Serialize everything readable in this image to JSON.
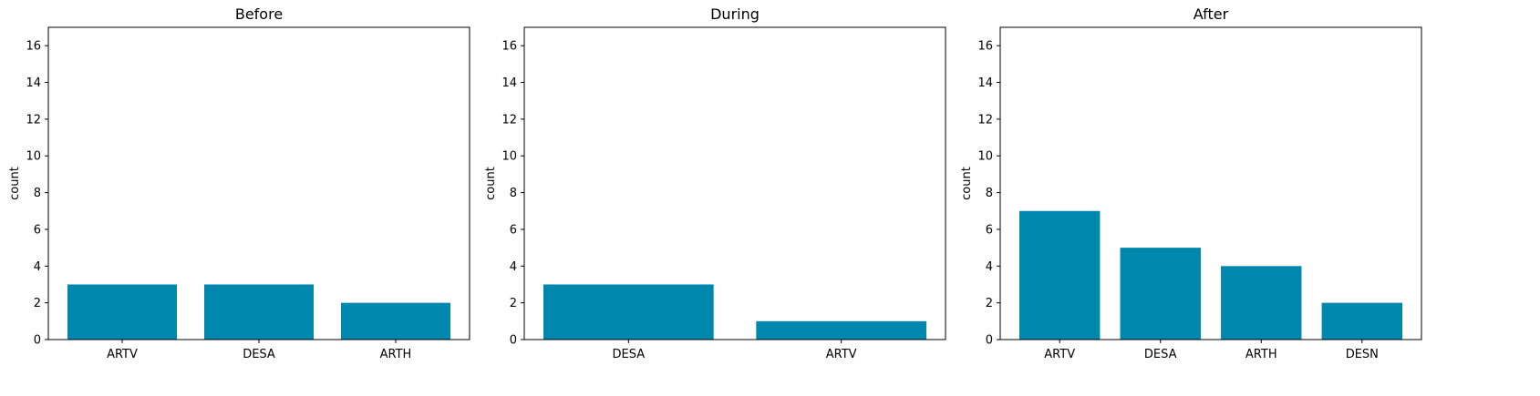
{
  "colors": {
    "bar": "#0087ae",
    "axis": "#000000",
    "background": "#ffffff"
  },
  "chart_data": [
    {
      "type": "bar",
      "title": "Before",
      "xlabel": "",
      "ylabel": "count",
      "ylim": [
        0,
        17
      ],
      "yticks": [
        0,
        2,
        4,
        6,
        8,
        10,
        12,
        14,
        16
      ],
      "categories": [
        "ARTV",
        "DESA",
        "ARTH"
      ],
      "values": [
        3,
        3,
        2
      ],
      "grid": false
    },
    {
      "type": "bar",
      "title": "During",
      "xlabel": "",
      "ylabel": "count",
      "ylim": [
        0,
        17
      ],
      "yticks": [
        0,
        2,
        4,
        6,
        8,
        10,
        12,
        14,
        16
      ],
      "categories": [
        "DESA",
        "ARTV"
      ],
      "values": [
        3,
        1
      ],
      "grid": false
    },
    {
      "type": "bar",
      "title": "After",
      "xlabel": "",
      "ylabel": "count",
      "ylim": [
        0,
        17
      ],
      "yticks": [
        0,
        2,
        4,
        6,
        8,
        10,
        12,
        14,
        16
      ],
      "categories": [
        "ARTV",
        "DESA",
        "ARTH",
        "DESN"
      ],
      "values": [
        7,
        5,
        4,
        2
      ],
      "grid": false
    }
  ]
}
